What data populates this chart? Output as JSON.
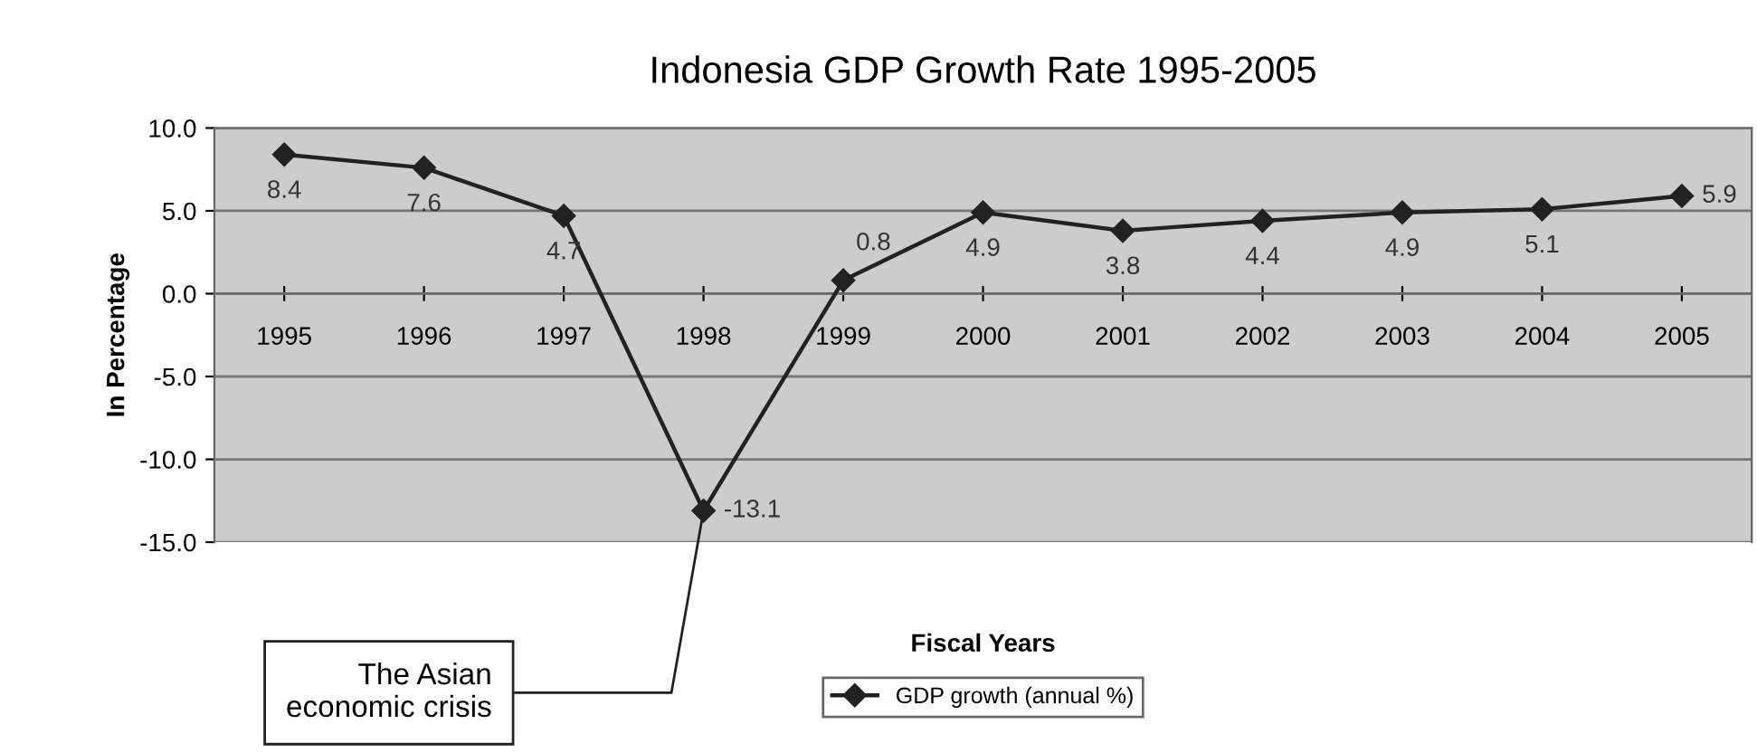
{
  "chart_data": {
    "type": "line",
    "title": "Indonesia GDP Growth Rate 1995-2005",
    "xlabel": "Fiscal Years",
    "ylabel": "In Percentage",
    "categories": [
      "1995",
      "1996",
      "1997",
      "1998",
      "1999",
      "2000",
      "2001",
      "2002",
      "2003",
      "2004",
      "2005"
    ],
    "series": [
      {
        "name": "GDP growth (annual %)",
        "color": "#222222",
        "values": [
          8.4,
          7.6,
          4.7,
          -13.1,
          0.8,
          4.9,
          3.8,
          4.4,
          4.9,
          5.1,
          5.9
        ]
      }
    ],
    "ylim": [
      -15,
      10
    ],
    "yticks": [
      {
        "value": -15,
        "label": "-15.0"
      },
      {
        "value": -10,
        "label": "-10.0"
      },
      {
        "value": -5,
        "label": "-5.0"
      },
      {
        "value": 0,
        "label": "0.0"
      },
      {
        "value": 5,
        "label": "5.0"
      },
      {
        "value": 10,
        "label": "10.0"
      }
    ],
    "grid": "y",
    "legend": "bottom",
    "marker": "diamond",
    "line_style": "solid",
    "data_labels": true,
    "annotations": [
      {
        "text": "The Asian\neconomic crisis",
        "x": "1998",
        "y": -13.1
      }
    ]
  }
}
